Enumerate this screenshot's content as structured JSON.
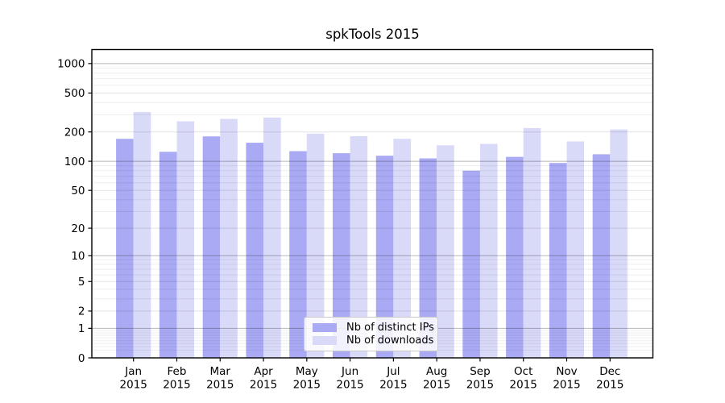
{
  "chart_data": {
    "type": "bar",
    "title": "spkTools 2015",
    "categories": [
      "Jan",
      "Feb",
      "Mar",
      "Apr",
      "May",
      "Jun",
      "Jul",
      "Aug",
      "Sep",
      "Oct",
      "Nov",
      "Dec"
    ],
    "x_year_label": "2015",
    "series": [
      {
        "name": "Nb of distinct IPs",
        "color": "#a9a9f4",
        "values": [
          170,
          125,
          180,
          155,
          127,
          121,
          114,
          107,
          80,
          111,
          96,
          118
        ]
      },
      {
        "name": "Nb of downloads",
        "color": "#d9d9f8",
        "values": [
          320,
          257,
          272,
          281,
          192,
          181,
          170,
          146,
          151,
          219,
          160,
          212
        ]
      }
    ],
    "yscale": "log1p",
    "yticks": [
      0,
      1,
      2,
      5,
      10,
      20,
      50,
      100,
      200,
      500,
      1000
    ],
    "ylim": [
      0,
      1350
    ],
    "grid": true,
    "legend_position": "lower center",
    "background_color": "#ffffff",
    "decade_grid_color": "rgba(0,0,0,0.28)",
    "tick_grid_color": "rgba(0,0,0,0.11)",
    "minor_grid_color": "rgba(0,0,0,0.065)"
  }
}
